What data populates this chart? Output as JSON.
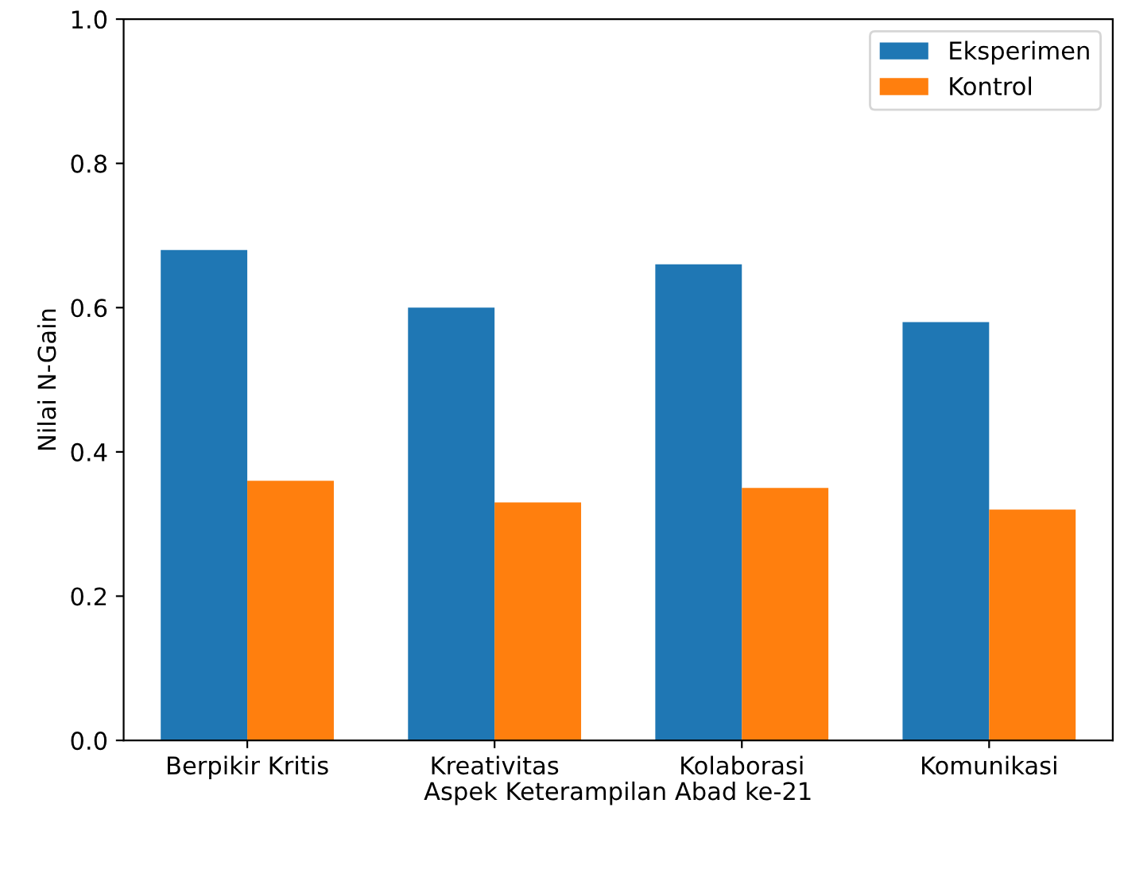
{
  "chart_data": {
    "type": "bar",
    "xlabel": "Aspek Keterampilan Abad ke-21",
    "ylabel": "Nilai N-Gain",
    "categories": [
      "Berpikir Kritis",
      "Kreativitas",
      "Kolaborasi",
      "Komunikasi"
    ],
    "series": [
      {
        "name": "Eksperimen",
        "color": "#1f77b4",
        "values": [
          0.68,
          0.6,
          0.66,
          0.58
        ]
      },
      {
        "name": "Kontrol",
        "color": "#ff7f0e",
        "values": [
          0.36,
          0.33,
          0.35,
          0.32
        ]
      }
    ],
    "ylim": [
      0,
      1.0
    ],
    "yticks": [
      {
        "value": 0,
        "label": "0.0"
      },
      0.2,
      0.4,
      0.6,
      0.8,
      {
        "value": 1,
        "label": "1.0"
      }
    ],
    "legend": "top right"
  }
}
